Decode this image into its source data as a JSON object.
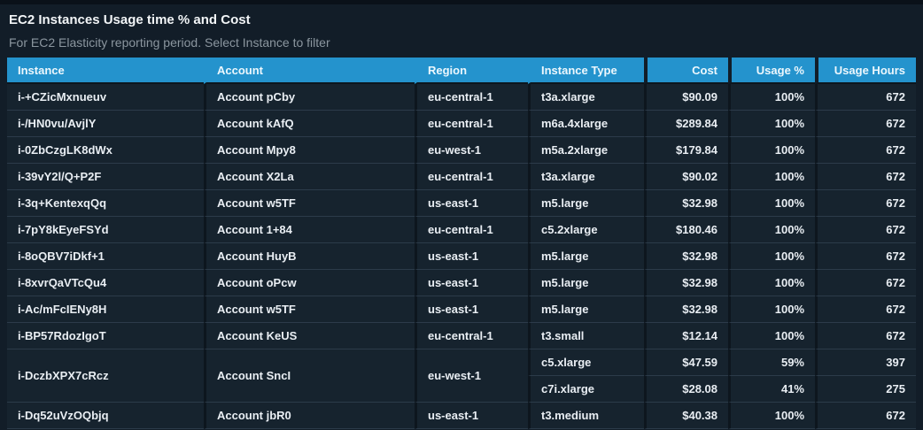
{
  "panel": {
    "title": "EC2 Instances Usage time % and Cost",
    "subtitle": "For EC2 Elasticity reporting period. Select Instance to filter"
  },
  "colors": {
    "header_blue": "#2493cd",
    "page_bg": "#121d28",
    "row_bg": "#16232e",
    "row_line": "#2c3b4a",
    "vertical_line": "#0d161e",
    "body_text": "#e9eef3",
    "subtitle_text": "#8b969f"
  },
  "chart_data": {
    "type": "table",
    "title": "EC2 Instances Usage time % and Cost",
    "columns": [
      {
        "key": "instance",
        "label": "Instance",
        "align": "left"
      },
      {
        "key": "account",
        "label": "Account",
        "align": "left"
      },
      {
        "key": "region",
        "label": "Region",
        "align": "left"
      },
      {
        "key": "instance_type",
        "label": "Instance Type",
        "align": "left"
      },
      {
        "key": "cost",
        "label": "Cost",
        "align": "right"
      },
      {
        "key": "usage_pct",
        "label": "Usage %",
        "align": "right"
      },
      {
        "key": "usage_hours",
        "label": "Usage Hours",
        "align": "right"
      }
    ],
    "rows": [
      {
        "instance": "i-+CZicMxnueuv",
        "account": "Account pCby",
        "region": "eu-central-1",
        "instance_type": "t3a.xlarge",
        "cost": "$90.09",
        "usage_pct": "100%",
        "usage_hours": "672"
      },
      {
        "instance": "i-/HN0vu/AvjlY",
        "account": "Account kAfQ",
        "region": "eu-central-1",
        "instance_type": "m6a.4xlarge",
        "cost": "$289.84",
        "usage_pct": "100%",
        "usage_hours": "672"
      },
      {
        "instance": "i-0ZbCzgLK8dWx",
        "account": "Account Mpy8",
        "region": "eu-west-1",
        "instance_type": "m5a.2xlarge",
        "cost": "$179.84",
        "usage_pct": "100%",
        "usage_hours": "672"
      },
      {
        "instance": "i-39vY2l/Q+P2F",
        "account": "Account X2La",
        "region": "eu-central-1",
        "instance_type": "t3a.xlarge",
        "cost": "$90.02",
        "usage_pct": "100%",
        "usage_hours": "672"
      },
      {
        "instance": "i-3q+KentexqQq",
        "account": "Account w5TF",
        "region": "us-east-1",
        "instance_type": "m5.large",
        "cost": "$32.98",
        "usage_pct": "100%",
        "usage_hours": "672"
      },
      {
        "instance": "i-7pY8kEyeFSYd",
        "account": "Account 1+84",
        "region": "eu-central-1",
        "instance_type": "c5.2xlarge",
        "cost": "$180.46",
        "usage_pct": "100%",
        "usage_hours": "672"
      },
      {
        "instance": "i-8oQBV7iDkf+1",
        "account": "Account HuyB",
        "region": "us-east-1",
        "instance_type": "m5.large",
        "cost": "$32.98",
        "usage_pct": "100%",
        "usage_hours": "672"
      },
      {
        "instance": "i-8xvrQaVTcQu4",
        "account": "Account oPcw",
        "region": "us-east-1",
        "instance_type": "m5.large",
        "cost": "$32.98",
        "usage_pct": "100%",
        "usage_hours": "672"
      },
      {
        "instance": "i-Ac/mFcIENy8H",
        "account": "Account w5TF",
        "region": "us-east-1",
        "instance_type": "m5.large",
        "cost": "$32.98",
        "usage_pct": "100%",
        "usage_hours": "672"
      },
      {
        "instance": "i-BP57RdozIgoT",
        "account": "Account KeUS",
        "region": "eu-central-1",
        "instance_type": "t3.small",
        "cost": "$12.14",
        "usage_pct": "100%",
        "usage_hours": "672"
      },
      {
        "instance": "i-DczbXPX7cRcz",
        "account": "Account SncI",
        "region": "eu-west-1",
        "instance_type": "c5.xlarge",
        "cost": "$47.59",
        "usage_pct": "59%",
        "usage_hours": "397",
        "rowspan": 2
      },
      {
        "continuation": true,
        "instance_type": "c7i.xlarge",
        "cost": "$28.08",
        "usage_pct": "41%",
        "usage_hours": "275"
      },
      {
        "instance": "i-Dq52uVzOQbjq",
        "account": "Account jbR0",
        "region": "us-east-1",
        "instance_type": "t3.medium",
        "cost": "$40.38",
        "usage_pct": "100%",
        "usage_hours": "672"
      }
    ]
  }
}
